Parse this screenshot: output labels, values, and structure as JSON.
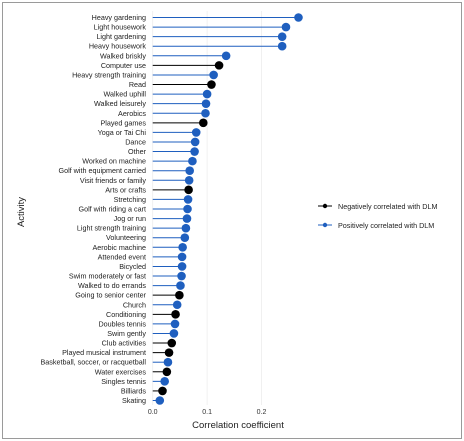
{
  "chart_data": {
    "type": "lollipop",
    "xlabel": "Correlation coefficient",
    "ylabel": "Activity",
    "xlim": [
      -0.005,
      0.28
    ],
    "xticks": [
      0.0,
      0.1,
      0.2
    ],
    "xtick_labels": [
      "0.0",
      "0.1",
      "0.2"
    ],
    "legend_position": "right",
    "series": [
      {
        "name": "Negatively correlated with DLM",
        "color": "#000000"
      },
      {
        "name": "Positively correlated with DLM",
        "color": "#1f5fbf"
      }
    ],
    "categories": [
      "Heavy gardening",
      "Light housework",
      "Light gardening",
      "Heavy housework",
      "Walked briskly",
      "Computer use",
      "Heavy strength training",
      "Read",
      "Walked uphill",
      "Walked leisurely",
      "Aerobics",
      "Played games",
      "Yoga or Tai Chi",
      "Dance",
      "Other",
      "Worked on machine",
      "Golf with equipment carried",
      "Visit friends or family",
      "Arts or crafts",
      "Stretching",
      "Golf with riding a cart",
      "Jog or run",
      "Light strength training",
      "Volunteering",
      "Aerobic machine",
      "Attended event",
      "Bicycled",
      "Swim moderately or fast",
      "Walked to do errands",
      "Going to senior center",
      "Church",
      "Conditioning",
      "Doubles tennis",
      "Swim gently",
      "Club activities",
      "Played musical instrument",
      "Basketball, soccer, or racquetball",
      "Water exercises",
      "Singles tennis",
      "Billiards",
      "Skating"
    ],
    "values": [
      0.268,
      0.245,
      0.238,
      0.238,
      0.135,
      0.122,
      0.112,
      0.108,
      0.1,
      0.098,
      0.097,
      0.093,
      0.08,
      0.078,
      0.077,
      0.073,
      0.068,
      0.067,
      0.066,
      0.065,
      0.064,
      0.063,
      0.061,
      0.059,
      0.055,
      0.054,
      0.054,
      0.053,
      0.051,
      0.049,
      0.045,
      0.042,
      0.041,
      0.039,
      0.035,
      0.03,
      0.028,
      0.026,
      0.022,
      0.018,
      0.013
    ],
    "direction": [
      "positive",
      "positive",
      "positive",
      "positive",
      "positive",
      "negative",
      "positive",
      "negative",
      "positive",
      "positive",
      "positive",
      "negative",
      "positive",
      "positive",
      "positive",
      "positive",
      "positive",
      "positive",
      "negative",
      "positive",
      "positive",
      "positive",
      "positive",
      "positive",
      "positive",
      "positive",
      "positive",
      "positive",
      "positive",
      "negative",
      "positive",
      "negative",
      "positive",
      "positive",
      "negative",
      "negative",
      "positive",
      "negative",
      "positive",
      "negative",
      "positive"
    ]
  }
}
